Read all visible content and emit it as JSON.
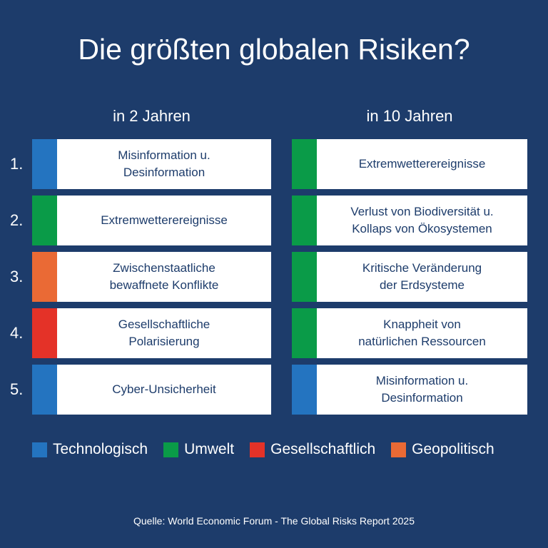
{
  "title": "Die größten globalen Risiken?",
  "columns": {
    "left": {
      "heading": "in 2 Jahren"
    },
    "right": {
      "heading": "in 10 Jahren"
    }
  },
  "ranks": [
    "1.",
    "2.",
    "3.",
    "4.",
    "5."
  ],
  "categories": {
    "technologisch": {
      "label": "Technologisch",
      "color": "#2474c0"
    },
    "umwelt": {
      "label": "Umwelt",
      "color": "#0a9b48"
    },
    "gesellschaftlich": {
      "label": "Gesellschaftlich",
      "color": "#e43228"
    },
    "geopolitisch": {
      "label": "Geopolitisch",
      "color": "#ea6a35"
    }
  },
  "two_years": [
    {
      "text": "Misinformation u.\nDesinformation",
      "category": "technologisch"
    },
    {
      "text": "Extremwetterereignisse",
      "category": "umwelt"
    },
    {
      "text": "Zwischenstaatliche\nbewaffnete Konflikte",
      "category": "geopolitisch"
    },
    {
      "text": "Gesellschaftliche\nPolarisierung",
      "category": "gesellschaftlich"
    },
    {
      "text": "Cyber-Unsicherheit",
      "category": "technologisch"
    }
  ],
  "ten_years": [
    {
      "text": "Extremwetterereignisse",
      "category": "umwelt"
    },
    {
      "text": "Verlust von Biodiversität u.\nKollaps von Ökosystemen",
      "category": "umwelt"
    },
    {
      "text": "Kritische Veränderung\nder Erdsysteme",
      "category": "umwelt"
    },
    {
      "text": "Knappheit von\nnatürlichen Ressourcen",
      "category": "umwelt"
    },
    {
      "text": "Misinformation u.\nDesinformation",
      "category": "technologisch"
    }
  ],
  "legend": [
    "technologisch",
    "umwelt",
    "gesellschaftlich",
    "geopolitisch"
  ],
  "source": "Quelle: World Economic Forum - The Global Risks Report 2025"
}
